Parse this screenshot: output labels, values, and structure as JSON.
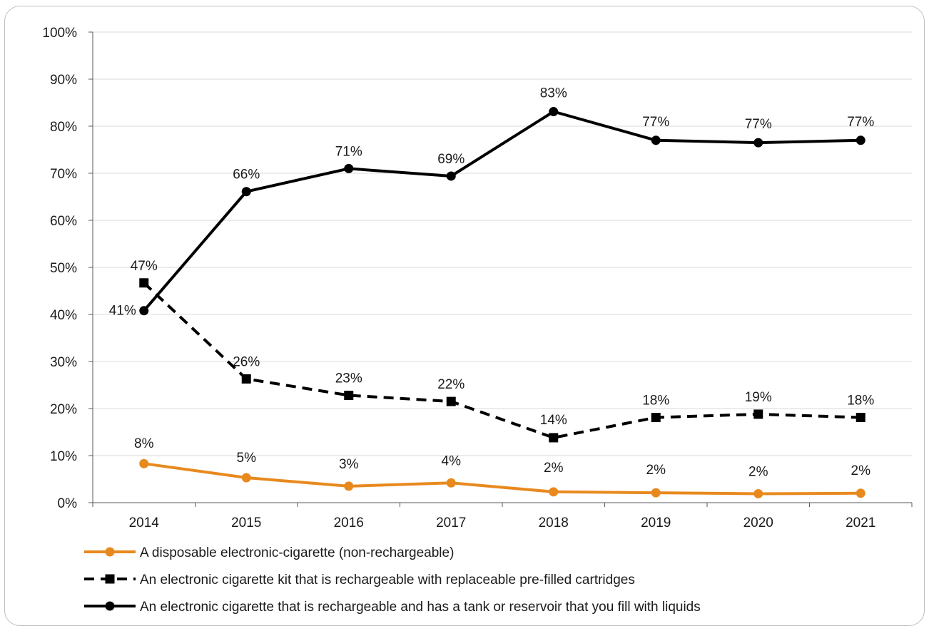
{
  "chart_data": {
    "type": "line",
    "title": "",
    "xlabel": "",
    "ylabel": "",
    "x": [
      "2014",
      "2015",
      "2016",
      "2017",
      "2018",
      "2019",
      "2020",
      "2021"
    ],
    "ylim": [
      0,
      100
    ],
    "y_ticks": [
      "0%",
      "10%",
      "20%",
      "30%",
      "40%",
      "50%",
      "60%",
      "70%",
      "80%",
      "90%",
      "100%"
    ],
    "grid": true,
    "legend_position": "bottom",
    "series": [
      {
        "name": "A disposable electronic-cigarette (non-rechargeable)",
        "values": [
          8.3,
          5.3,
          3.5,
          4.2,
          2.3,
          2.1,
          1.9,
          2.0
        ],
        "labels": [
          "8%",
          "5%",
          "3%",
          "4%",
          "2%",
          "2%",
          "2%",
          "2%"
        ],
        "color": "#e8891e",
        "line_style": "solid",
        "marker": "circle"
      },
      {
        "name": "An electronic cigarette kit that is rechargeable with replaceable pre-filled cartridges",
        "values": [
          46.7,
          26.3,
          22.8,
          21.5,
          13.8,
          18.1,
          18.8,
          18.1
        ],
        "labels": [
          "47%",
          "26%",
          "23%",
          "22%",
          "14%",
          "18%",
          "19%",
          "18%"
        ],
        "color": "#000000",
        "line_style": "dashed",
        "marker": "square"
      },
      {
        "name": "An electronic cigarette that is rechargeable and has a tank or reservoir that you fill with liquids",
        "values": [
          40.8,
          66.1,
          71.0,
          69.4,
          83.1,
          77.0,
          76.5,
          77.0
        ],
        "labels": [
          "41%",
          "66%",
          "71%",
          "69%",
          "83%",
          "77%",
          "77%",
          "77%"
        ],
        "color": "#000000",
        "line_style": "solid",
        "marker": "circle"
      }
    ]
  }
}
